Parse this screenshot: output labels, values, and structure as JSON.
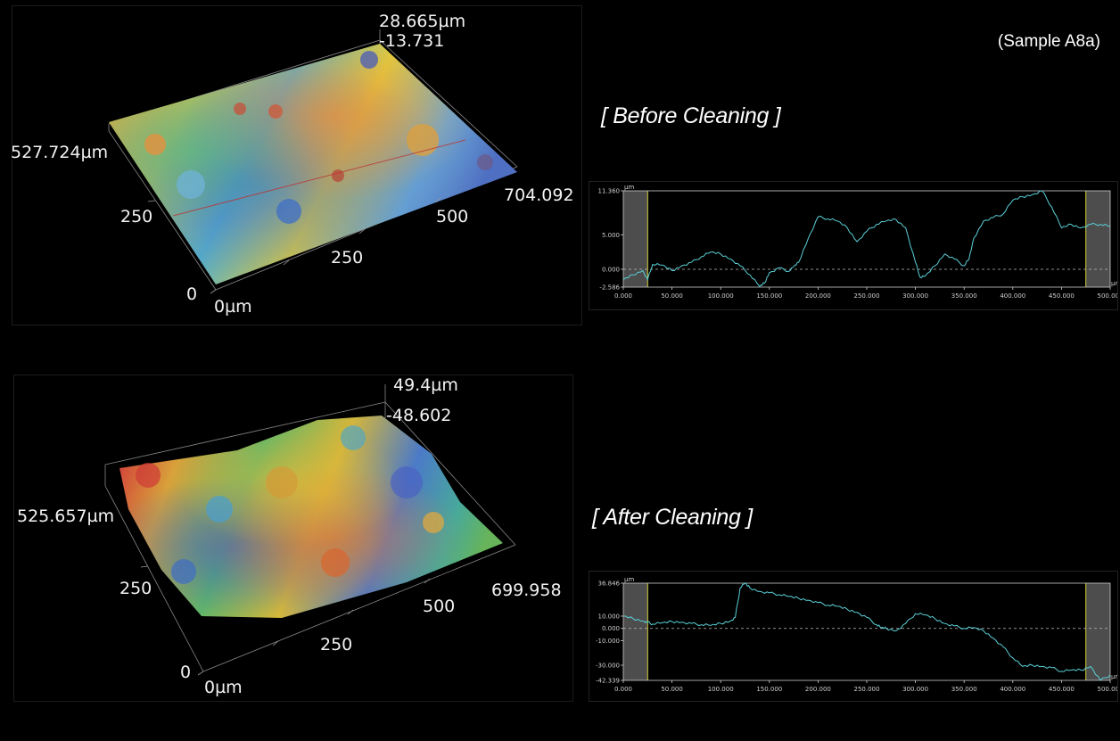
{
  "sample_label": "(Sample A8a)",
  "before": {
    "heading": "[ Before Cleaning ]",
    "surface": {
      "z_max": "28.665µm",
      "z_min": "-13.731",
      "y_extent": "527.724µm",
      "x_extent": "704.092",
      "y_tick": "250",
      "x_tick_250": "250",
      "x_tick_500": "500",
      "origin_y": "0",
      "origin_x": "0µm"
    },
    "profile": {
      "unit": "µm",
      "y_ticks": [
        "11.360",
        "5.000",
        "0.000",
        "-2.586"
      ],
      "x_ticks": [
        "0.000",
        "50.000",
        "100.000",
        "150.000",
        "200.000",
        "250.000",
        "300.000",
        "350.000",
        "400.000",
        "450.000",
        "500.000"
      ]
    }
  },
  "after": {
    "heading": "[ After Cleaning ]",
    "surface": {
      "z_max": "49.4µm",
      "z_min": "-48.602",
      "y_extent": "525.657µm",
      "x_extent": "699.958",
      "y_tick": "250",
      "x_tick_250": "250",
      "x_tick_500": "500",
      "origin_y": "0",
      "origin_x": "0µm"
    },
    "profile": {
      "unit": "µm",
      "y_ticks": [
        "36.846",
        "10.000",
        "0.000",
        "-10.000",
        "-30.000",
        "-42.339"
      ],
      "x_ticks": [
        "0.000",
        "50.000",
        "100.000",
        "150.000",
        "200.000",
        "250.000",
        "300.000",
        "350.000",
        "400.000",
        "450.000",
        "500.000"
      ]
    }
  },
  "chart_data": [
    {
      "type": "line",
      "title": "",
      "xlabel": "µm",
      "ylabel": "µm",
      "xlim": [
        0,
        500
      ],
      "ylim": [
        -2.586,
        11.36
      ],
      "x": [
        0,
        10,
        20,
        25,
        30,
        40,
        50,
        60,
        70,
        80,
        90,
        100,
        110,
        120,
        130,
        140,
        145,
        150,
        160,
        170,
        175,
        180,
        190,
        200,
        210,
        220,
        230,
        240,
        250,
        260,
        270,
        280,
        290,
        300,
        305,
        310,
        320,
        330,
        340,
        350,
        355,
        360,
        370,
        380,
        390,
        400,
        410,
        420,
        430,
        440,
        450,
        460,
        470,
        480,
        490,
        500
      ],
      "series": [
        {
          "values": [
            -1.5,
            -0.8,
            -0.2,
            -1.5,
            0.7,
            0.6,
            -0.2,
            0.5,
            1.0,
            1.8,
            2.5,
            2.2,
            1.5,
            0.5,
            -0.8,
            -2.5,
            -2.0,
            -0.5,
            0.2,
            -0.3,
            0.4,
            1.0,
            4.5,
            7.6,
            7.3,
            7.0,
            6.0,
            4.0,
            5.5,
            6.5,
            7.0,
            7.2,
            6.0,
            1.0,
            -1.2,
            -1.0,
            0.5,
            2.2,
            1.5,
            0.5,
            1.5,
            4.5,
            7.0,
            7.5,
            8.0,
            10.0,
            10.5,
            10.8,
            11.36,
            9.0,
            6.0,
            6.5,
            6.0,
            6.5,
            6.5,
            6.2
          ]
        }
      ]
    },
    {
      "type": "line",
      "title": "",
      "xlabel": "µm",
      "ylabel": "µm",
      "xlim": [
        0,
        500
      ],
      "ylim": [
        -42.339,
        36.846
      ],
      "x": [
        0,
        10,
        20,
        25,
        30,
        40,
        50,
        60,
        70,
        80,
        90,
        100,
        110,
        115,
        120,
        125,
        130,
        140,
        150,
        160,
        170,
        180,
        190,
        200,
        210,
        220,
        230,
        240,
        250,
        260,
        265,
        270,
        280,
        290,
        300,
        310,
        320,
        330,
        340,
        350,
        360,
        370,
        380,
        390,
        400,
        410,
        420,
        430,
        440,
        450,
        460,
        470,
        480,
        490,
        500
      ],
      "series": [
        {
          "values": [
            10.0,
            8.0,
            6.0,
            5.0,
            3.5,
            4.5,
            5.5,
            5.0,
            4.0,
            3.0,
            2.5,
            4.0,
            6.0,
            9.0,
            33.0,
            36.846,
            33.0,
            30.0,
            29.0,
            27.5,
            26.0,
            24.5,
            23.0,
            21.0,
            19.0,
            18.0,
            15.5,
            13.0,
            9.0,
            3.0,
            0.5,
            0.0,
            -2.0,
            4.0,
            12.0,
            11.0,
            8.0,
            4.0,
            2.0,
            0.0,
            0.5,
            -2.0,
            -8.0,
            -15.0,
            -24.0,
            -31.0,
            -30.0,
            -31.0,
            -32.0,
            -35.0,
            -34.0,
            -34.0,
            -31.0,
            -42.339,
            -38.0
          ]
        }
      ]
    }
  ]
}
